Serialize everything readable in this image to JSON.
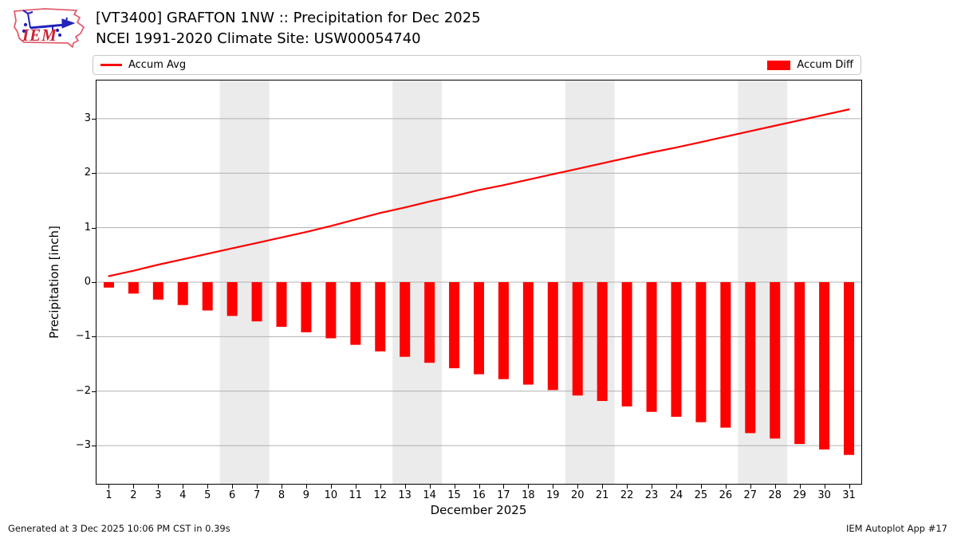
{
  "header": {
    "title_line1": "[VT3400] GRAFTON 1NW :: Precipitation for Dec 2025",
    "title_line2": "NCEI 1991-2020 Climate Site: USW00054740",
    "logo_text": "IEM"
  },
  "legend": {
    "avg_label": "Accum Avg",
    "diff_label": "Accum Diff"
  },
  "footer": {
    "generated": "Generated at 3 Dec 2025 10:06 PM CST in 0.39s",
    "app": "IEM Autoplot App #17"
  },
  "chart_data": {
    "type": "bar",
    "title": "[VT3400] GRAFTON 1NW :: Precipitation for Dec 2025",
    "subtitle": "NCEI 1991-2020 Climate Site: USW00054740",
    "xlabel": "December 2025",
    "ylabel": "Precipitation [inch]",
    "categories": [
      1,
      2,
      3,
      4,
      5,
      6,
      7,
      8,
      9,
      10,
      11,
      12,
      13,
      14,
      15,
      16,
      17,
      18,
      19,
      20,
      21,
      22,
      23,
      24,
      25,
      26,
      27,
      28,
      29,
      30,
      31
    ],
    "series": [
      {
        "name": "Accum Avg",
        "render": "line",
        "color": "#ff0000",
        "values": [
          0.11,
          0.21,
          0.32,
          0.42,
          0.52,
          0.62,
          0.72,
          0.82,
          0.92,
          1.03,
          1.15,
          1.27,
          1.37,
          1.48,
          1.58,
          1.69,
          1.78,
          1.88,
          1.98,
          2.08,
          2.18,
          2.28,
          2.38,
          2.47,
          2.57,
          2.67,
          2.77,
          2.87,
          2.97,
          3.07,
          3.17
        ]
      },
      {
        "name": "Accum Diff",
        "render": "bar",
        "color": "#ff0000",
        "values": [
          -0.1,
          -0.21,
          -0.32,
          -0.42,
          -0.52,
          -0.62,
          -0.72,
          -0.82,
          -0.92,
          -1.03,
          -1.15,
          -1.27,
          -1.37,
          -1.48,
          -1.58,
          -1.69,
          -1.78,
          -1.88,
          -1.98,
          -2.08,
          -2.18,
          -2.28,
          -2.38,
          -2.47,
          -2.57,
          -2.67,
          -2.77,
          -2.87,
          -2.97,
          -3.07,
          -3.17
        ]
      }
    ],
    "ylim": [
      -3.7,
      3.7
    ],
    "yticks": [
      3,
      2,
      1,
      0,
      -1,
      -2,
      -3
    ],
    "ytick_labels": [
      "3",
      "2",
      "1",
      "0",
      "−1",
      "−2",
      "−3"
    ],
    "xlim": [
      0.5,
      31.5
    ],
    "grid": true,
    "legend_position": "top",
    "weekend_bands": [
      [
        5.5,
        7.5
      ],
      [
        12.5,
        14.5
      ],
      [
        19.5,
        21.5
      ],
      [
        26.5,
        28.5
      ]
    ],
    "colors": {
      "accent": "#ff0000",
      "band": "#ebebeb",
      "grid": "#b0b0b0",
      "frame": "#000000"
    }
  }
}
